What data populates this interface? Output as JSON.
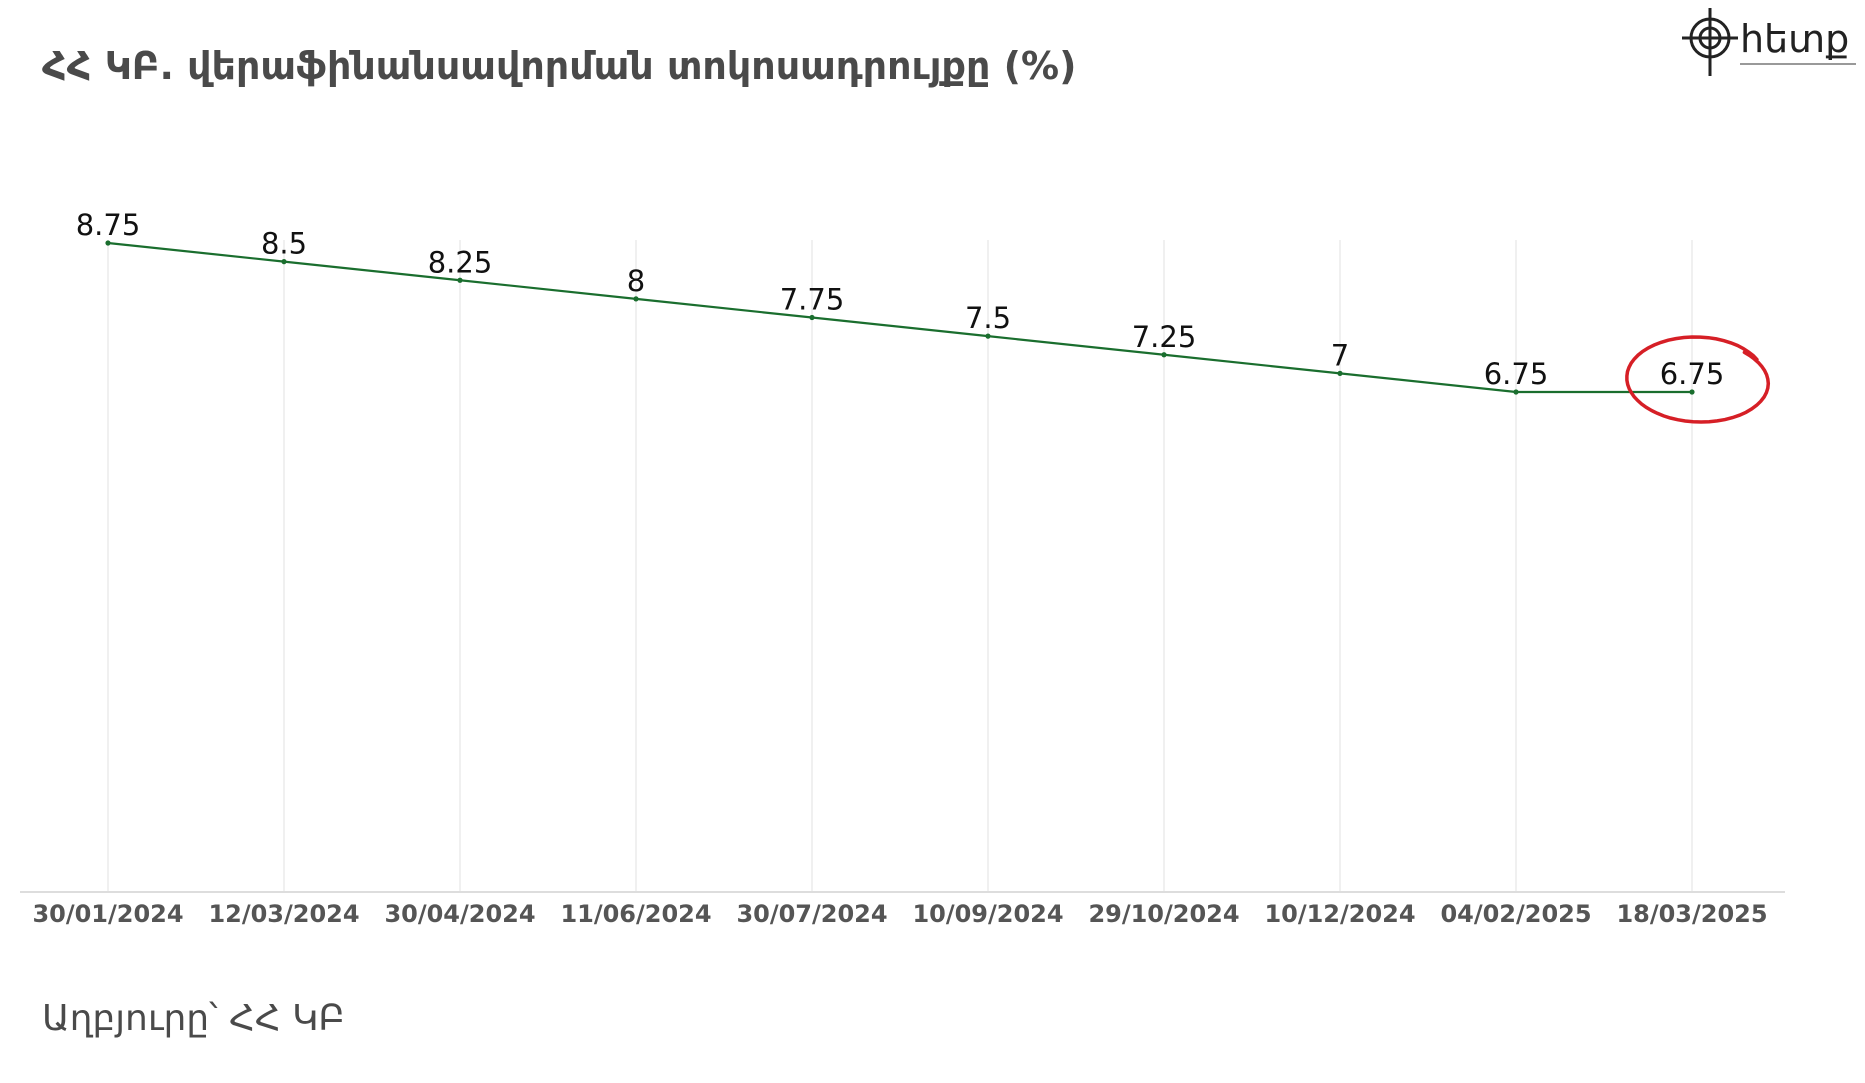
{
  "title": "ՀՀ ԿԲ. վերաֆինանսավորման տոկոսադրույքը  (%)",
  "source": "Աղբյուրը՝ ՀՀ ԿԲ",
  "logo": {
    "icon": "compass-target-icon",
    "text": "հետք"
  },
  "colors": {
    "line": "#1a6e2e",
    "highlight": "#d61f26",
    "grid": "#e6e6e6",
    "text": "#4a4a4a"
  },
  "chart_data": {
    "type": "line",
    "title": "ՀՀ ԿԲ. վերաֆինանսավորման տոկոսադրույքը  (%)",
    "xlabel": "",
    "ylabel": "",
    "categories": [
      "30/01/2024",
      "12/03/2024",
      "30/04/2024",
      "11/06/2024",
      "30/07/2024",
      "10/09/2024",
      "29/10/2024",
      "10/12/2024",
      "04/02/2025",
      "18/03/2025"
    ],
    "series": [
      {
        "values": [
          8.75,
          8.5,
          8.25,
          8,
          7.75,
          7.5,
          7.25,
          7,
          6.75,
          6.75
        ]
      }
    ],
    "data_labels": [
      "8.75",
      "8.5",
      "8.25",
      "8",
      "7.75",
      "7.5",
      "7.25",
      "7",
      "6.75",
      "6.75"
    ],
    "ylim": [
      0,
      9
    ],
    "grid": "vertical",
    "legend": "none",
    "annotation": "last point circled in red"
  }
}
